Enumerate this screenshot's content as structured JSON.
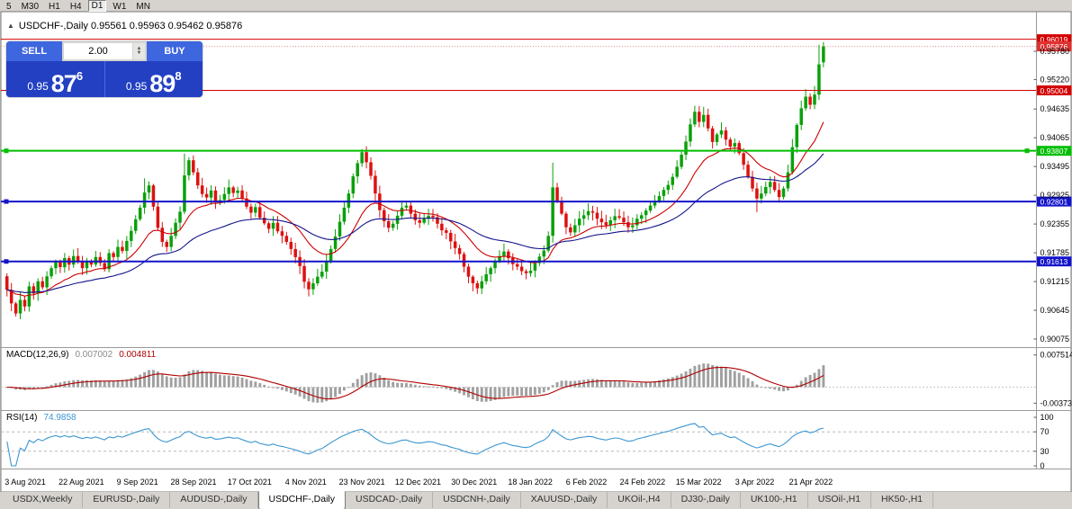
{
  "icons": {
    "collapse": "▲",
    "spinner_up": "▲",
    "spinner_down": "▼"
  },
  "toolbar": {
    "timeframes": [
      {
        "label": "5"
      },
      {
        "label": "M30"
      },
      {
        "label": "H1"
      },
      {
        "label": "H4"
      },
      {
        "label": "D1",
        "active": true
      },
      {
        "label": "W1"
      },
      {
        "label": "MN"
      }
    ]
  },
  "chart": {
    "title": "USDCHF-,Daily 0.95561 0.95963 0.95462 0.95876",
    "symbol": "USDCHF-",
    "period": "Daily",
    "ohlc": {
      "open": "0.95561",
      "high": "0.95963",
      "low": "0.95462",
      "close": "0.95876"
    }
  },
  "one_click": {
    "sell_label": "SELL",
    "buy_label": "BUY",
    "lot": "2.00",
    "sell_price": {
      "prefix": "0.95",
      "big": "87",
      "sup": "6"
    },
    "buy_price": {
      "prefix": "0.95",
      "big": "89",
      "sup": "8"
    }
  },
  "chart_data": {
    "type": "candlestick",
    "symbol": "USDCHF-",
    "timeframe": "Daily",
    "up_color": "#0aa00a",
    "down_color": "#dd1111",
    "x_labels": [
      "3 Aug 2021",
      "22 Aug 2021",
      "9 Sep 2021",
      "28 Sep 2021",
      "17 Oct 2021",
      "4 Nov 2021",
      "23 Nov 2021",
      "12 Dec 2021",
      "30 Dec 2021",
      "18 Jan 2022",
      "6 Feb 2022",
      "24 Feb 2022",
      "15 Mar 2022",
      "3 Apr 2022",
      "21 Apr 2022"
    ],
    "y_axis_labels": [
      "0.95780",
      "0.95220",
      "0.94635",
      "0.94065",
      "0.93495",
      "0.92925",
      "0.92355",
      "0.91785",
      "0.91215",
      "0.90645",
      "0.90075"
    ],
    "first_open": 0.9132,
    "closes": [
      0.9105,
      0.9078,
      0.9058,
      0.9085,
      0.9072,
      0.9112,
      0.9098,
      0.9122,
      0.911,
      0.9132,
      0.9148,
      0.9162,
      0.915,
      0.9168,
      0.9155,
      0.9172,
      0.916,
      0.9148,
      0.9162,
      0.9155,
      0.917,
      0.9158,
      0.9146,
      0.9178,
      0.917,
      0.919,
      0.9182,
      0.9202,
      0.9222,
      0.9245,
      0.9268,
      0.9298,
      0.9312,
      0.927,
      0.9228,
      0.92,
      0.919,
      0.9212,
      0.9238,
      0.926,
      0.9332,
      0.9362,
      0.9338,
      0.9312,
      0.9295,
      0.9288,
      0.9302,
      0.928,
      0.9283,
      0.9295,
      0.9308,
      0.9297,
      0.9302,
      0.9286,
      0.927,
      0.9258,
      0.9269,
      0.9248,
      0.9237,
      0.9226,
      0.9238,
      0.9221,
      0.9212,
      0.92,
      0.9186,
      0.917,
      0.9152,
      0.9121,
      0.9106,
      0.9118,
      0.9131,
      0.9141,
      0.9162,
      0.9186,
      0.9211,
      0.924,
      0.9268,
      0.9296,
      0.933,
      0.9356,
      0.9378,
      0.9358,
      0.9331,
      0.9296,
      0.9263,
      0.9241,
      0.9228,
      0.9236,
      0.9252,
      0.9268,
      0.9272,
      0.9256,
      0.9243,
      0.9238,
      0.9246,
      0.9252,
      0.9249,
      0.9236,
      0.9223,
      0.9218,
      0.9201,
      0.9188,
      0.9176,
      0.9151,
      0.9131,
      0.9118,
      0.9108,
      0.9122,
      0.9136,
      0.9148,
      0.9161,
      0.9172,
      0.9181,
      0.9168,
      0.9156,
      0.9151,
      0.9142,
      0.9138,
      0.9143,
      0.9158,
      0.9171,
      0.9183,
      0.9212,
      0.9308,
      0.9281,
      0.9256,
      0.9229,
      0.9219,
      0.9233,
      0.9246,
      0.9253,
      0.9261,
      0.9258,
      0.9246,
      0.9239,
      0.9233,
      0.9243,
      0.9251,
      0.9248,
      0.9239,
      0.9229,
      0.9233,
      0.9246,
      0.9253,
      0.9262,
      0.9272,
      0.9281,
      0.9291,
      0.9303,
      0.9313,
      0.9329,
      0.9349,
      0.9373,
      0.9399,
      0.9433,
      0.9458,
      0.9438,
      0.9452,
      0.9425,
      0.9398,
      0.9413,
      0.9421,
      0.9403,
      0.9389,
      0.9396,
      0.9376,
      0.9353,
      0.9329,
      0.9306,
      0.9286,
      0.9296,
      0.9309,
      0.9319,
      0.9303,
      0.9289,
      0.9306,
      0.9338,
      0.9388,
      0.9432,
      0.9465,
      0.9488,
      0.9472,
      0.9492,
      0.9552,
      0.95876
    ],
    "wick_overrides": {
      "2": {
        "low": 0.9052
      },
      "31": {
        "high": 0.9326
      },
      "40": {
        "high": 0.9375
      },
      "68": {
        "low": 0.9092
      },
      "80": {
        "high": 0.9384
      },
      "106": {
        "low": 0.9097
      },
      "123": {
        "high": 0.9357
      },
      "155": {
        "high": 0.947
      },
      "157": {
        "high": 0.9468
      },
      "169": {
        "low": 0.9259
      },
      "180": {
        "high": 0.9503
      },
      "182": {
        "high": 0.9509
      },
      "183": {
        "high": 0.9591
      }
    },
    "last_candle": {
      "open": 0.95561,
      "high": 0.95963,
      "low": 0.95462,
      "close": 0.95876
    },
    "level_lines": [
      {
        "price": 0.96019,
        "label": "0.96019",
        "color": "#d40000",
        "width": 1,
        "handles": "none"
      },
      {
        "price": 0.95004,
        "label": "0.95004",
        "color": "#d40000",
        "width": 1,
        "handles": "none"
      },
      {
        "price": 0.93807,
        "label": "0.93807",
        "color": "#00bf00",
        "width": 2,
        "handles": "both"
      },
      {
        "price": 0.92801,
        "label": "0.92801",
        "color": "#1414cc",
        "width": 2,
        "handles": "left"
      },
      {
        "price": 0.91613,
        "label": "0.91613",
        "color": "#1414cc",
        "width": 2,
        "handles": "left"
      }
    ],
    "current_price": {
      "value": 0.95876,
      "label": "0.95876",
      "color": "#e03030"
    },
    "ma_lines": [
      {
        "name": "ma-fast",
        "color": "#cc0000"
      },
      {
        "name": "ma-slow",
        "color": "#14148c"
      }
    ],
    "macd": {
      "name": "MACD(12,26,9)",
      "fast": 12,
      "slow": 26,
      "signal": 9,
      "main_value": "0.007002",
      "signal_value": "0.004811",
      "histogram_color": "#a0a0a0",
      "signal_color": "#b00000",
      "axis_labels": [
        {
          "value": 0.007514,
          "label": "0.007514"
        },
        {
          "value": -0.00373,
          "label": "-0.00373"
        }
      ]
    },
    "rsi": {
      "name": "RSI(14)",
      "period": 14,
      "value": "74.9858",
      "color": "#3c96d2",
      "levels": [
        70,
        30
      ],
      "axis_labels": [
        {
          "value": 100,
          "label": "100"
        },
        {
          "value": 70,
          "label": "70"
        },
        {
          "value": 30,
          "label": "30"
        },
        {
          "value": 0,
          "label": "0"
        }
      ]
    }
  },
  "tabs": [
    {
      "label": "USDX,Weekly"
    },
    {
      "label": "EURUSD-,Daily"
    },
    {
      "label": "AUDUSD-,Daily"
    },
    {
      "label": "USDCHF-,Daily",
      "active": true
    },
    {
      "label": "USDCAD-,Daily"
    },
    {
      "label": "USDCNH-,Daily"
    },
    {
      "label": "XAUUSD-,Daily"
    },
    {
      "label": "UKOil-,H4"
    },
    {
      "label": "DJ30-,Daily"
    },
    {
      "label": "UK100-,H1"
    },
    {
      "label": "USOil-,H1"
    },
    {
      "label": "HK50-,H1"
    }
  ]
}
